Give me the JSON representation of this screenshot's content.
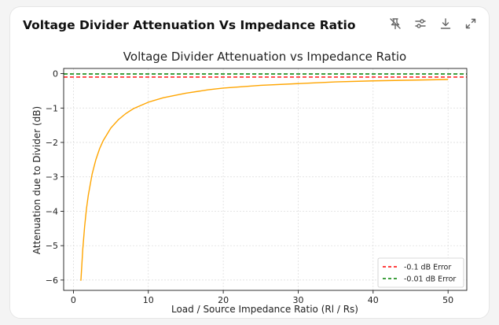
{
  "card": {
    "title": "Voltage Divider Attenuation Vs Impedance Ratio"
  },
  "toolbar": {
    "icons": [
      "pin-off-icon",
      "sliders-icon",
      "download-icon",
      "expand-icon"
    ]
  },
  "chart_data": {
    "type": "line",
    "title": "Voltage Divider Attenuation vs Impedance Ratio",
    "xlabel": "Load / Source Impedance Ratio (Rl / Rs)",
    "ylabel": "Attenuation due to Divider (dB)",
    "xlim": [
      -1.3,
      52.5
    ],
    "ylim": [
      -6.3,
      0.15
    ],
    "xticks": [
      0,
      10,
      20,
      30,
      40,
      50
    ],
    "yticks": [
      0,
      -1,
      -2,
      -3,
      -4,
      -5,
      -6
    ],
    "ytick_labels": [
      "0",
      "−1",
      "−2",
      "−3",
      "−4",
      "−5",
      "−6"
    ],
    "grid": true,
    "legend_position": "lower-right",
    "series": [
      {
        "color": "#ffa500",
        "style": "solid",
        "x": [
          1,
          1.25,
          1.5,
          1.75,
          2,
          2.5,
          3,
          3.5,
          4,
          5,
          6,
          7,
          8,
          10,
          12,
          15,
          18,
          20,
          25,
          30,
          35,
          40,
          45,
          50
        ],
        "y": [
          -6.02,
          -5.11,
          -4.44,
          -3.92,
          -3.52,
          -2.92,
          -2.5,
          -2.18,
          -1.94,
          -1.58,
          -1.34,
          -1.16,
          -1.02,
          -0.83,
          -0.7,
          -0.57,
          -0.47,
          -0.42,
          -0.34,
          -0.29,
          -0.24,
          -0.21,
          -0.19,
          -0.17
        ]
      },
      {
        "name": "-0.1 dB Error",
        "color": "#ff0000",
        "style": "dashed",
        "y": -0.1
      },
      {
        "name": "-0.01 dB Error",
        "color": "#008000",
        "style": "dashed",
        "y": -0.01
      }
    ]
  }
}
